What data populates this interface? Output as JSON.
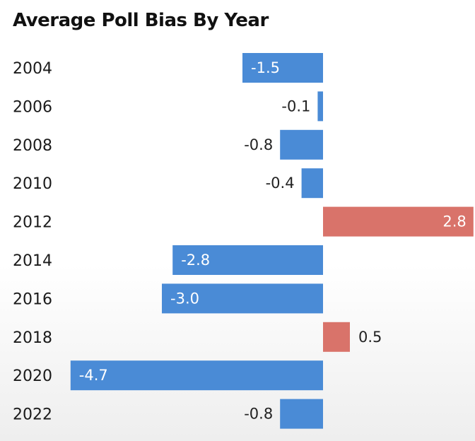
{
  "chart_data": {
    "type": "bar",
    "orientation": "horizontal",
    "title": "Average Poll Bias By Year",
    "categories": [
      "2004",
      "2006",
      "2008",
      "2010",
      "2012",
      "2014",
      "2016",
      "2018",
      "2020",
      "2022"
    ],
    "values": [
      -1.5,
      -0.1,
      -0.8,
      -0.4,
      2.8,
      -2.8,
      -3.0,
      0.5,
      -4.7,
      -0.8
    ],
    "value_labels": [
      "-1.5",
      "-0.1",
      "-0.8",
      "-0.4",
      "2.8",
      "-2.8",
      "-3.0",
      "0.5",
      "-4.7",
      "-0.8"
    ],
    "xlim": [
      -4.7,
      2.8
    ],
    "grid": false,
    "legend": "none",
    "colors": {
      "negative": "#4a8bd6",
      "positive": "#d9736a"
    }
  }
}
